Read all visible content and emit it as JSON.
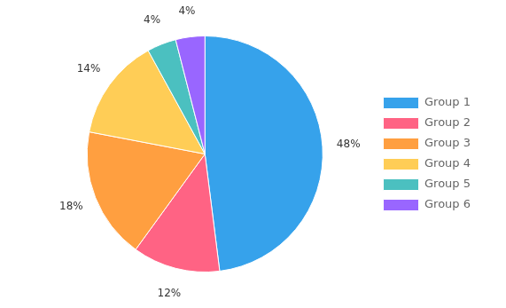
{
  "chart_data": {
    "type": "pie",
    "categories": [
      "Group 1",
      "Group 2",
      "Group 3",
      "Group 4",
      "Group 5",
      "Group 6"
    ],
    "values": [
      48,
      12,
      18,
      14,
      4,
      4
    ],
    "value_labels": [
      "48%",
      "12%",
      "18%",
      "14%",
      "4%",
      "4%"
    ],
    "data_labels": true,
    "legend": "right"
  }
}
